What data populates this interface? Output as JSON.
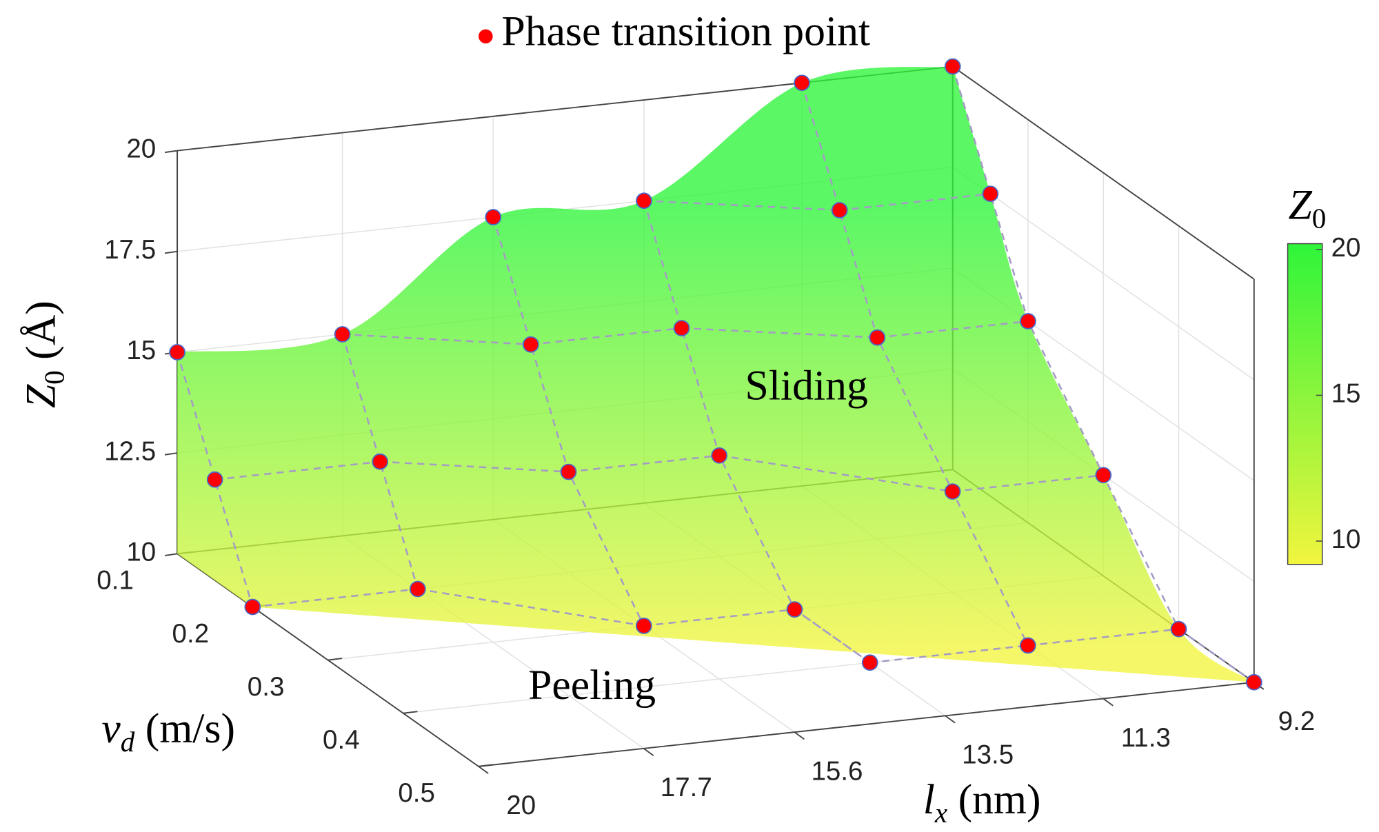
{
  "chart_data": {
    "type": "surface3d",
    "legend_title": null,
    "series": [
      {
        "name": "Phase transition point",
        "color": "#ff0000",
        "x": [
          20,
          20,
          20,
          17.7,
          17.7,
          17.7,
          15.6,
          15.6,
          15.6,
          15.6,
          13.5,
          13.5,
          13.5,
          13.5,
          13.5,
          11.3,
          11.3,
          11.3,
          11.3,
          11.3,
          9.2,
          9.2,
          9.2,
          9.2,
          9.2,
          9.2
        ],
        "y": [
          0.1,
          0.15,
          0.2,
          0.1,
          0.15,
          0.2,
          0.1,
          0.15,
          0.2,
          0.3,
          0.1,
          0.15,
          0.2,
          0.3,
          0.4,
          0.1,
          0.15,
          0.2,
          0.3,
          0.4,
          0.1,
          0.15,
          0.2,
          0.3,
          0.4,
          0.5
        ],
        "z": [
          15,
          12.5,
          10,
          15,
          12.5,
          10,
          17.5,
          15,
          12.5,
          10,
          17.5,
          15,
          12.5,
          10,
          10,
          20,
          17.5,
          15,
          12.5,
          10,
          20,
          17.5,
          15,
          12.5,
          10,
          10
        ]
      }
    ],
    "xlabel": {
      "symbol": "l",
      "subscript": "x",
      "unit": "(nm)"
    },
    "ylabel": {
      "symbol": "v",
      "subscript": "d",
      "unit": "(m/s)"
    },
    "zlabel": {
      "symbol": "Z",
      "subscript": "0",
      "unit": "(Å)"
    },
    "xlim": [
      9.2,
      20
    ],
    "xdir": "reverse",
    "xticks": [
      20,
      17.7,
      15.6,
      13.5,
      11.3,
      9.2
    ],
    "ylim": [
      0.1,
      0.5
    ],
    "yticks": [
      0.1,
      0.2,
      0.3,
      0.4,
      0.5
    ],
    "zlim": [
      10,
      20
    ],
    "zticks": [
      10,
      12.5,
      15,
      17.5,
      20
    ],
    "grid": true,
    "colorbar": {
      "title": {
        "symbol": "Z",
        "subscript": "0"
      },
      "clim": [
        9.2,
        20.2
      ],
      "ticks": [
        10,
        15,
        20
      ],
      "colormap": [
        "#f2f53e",
        "#2ef53a"
      ]
    },
    "annotations": [
      "Sliding",
      "Peeling"
    ]
  }
}
